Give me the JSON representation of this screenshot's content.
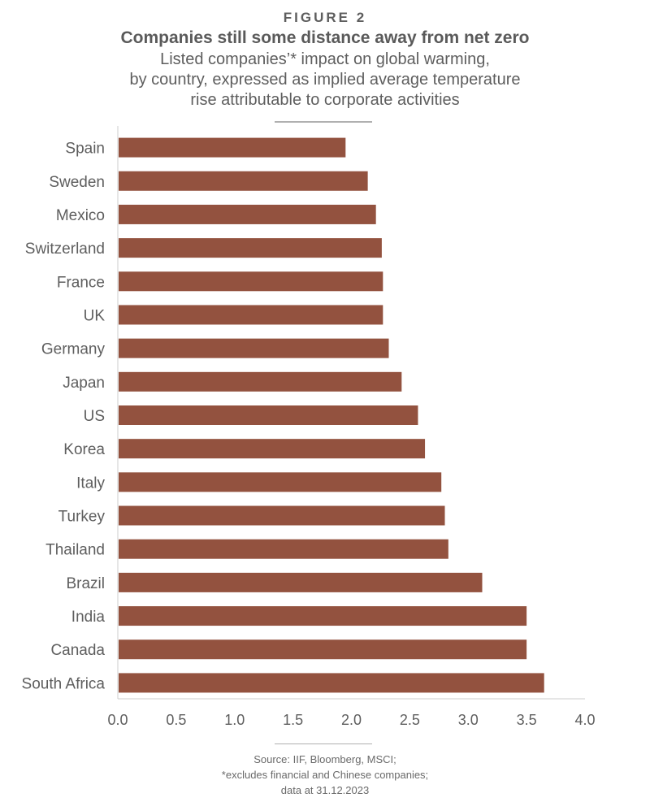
{
  "figure_label": "FIGURE 2",
  "title": "Companies still some distance away from net zero",
  "subtitle_lines": [
    "Listed companies’* impact on global warming,",
    "by country, expressed as implied average temperature",
    "rise attributable to corporate activities"
  ],
  "footer_lines": [
    "Source: IIF, Bloomberg, MSCI;",
    "*excludes financial and Chinese companies;",
    "data at 31.12.2023"
  ],
  "colors": {
    "bar": "#93523f",
    "axis": "#cccccc",
    "text": "#5a5a5a"
  },
  "chart_data": {
    "type": "bar",
    "orientation": "horizontal",
    "title": "Companies still some distance away from net zero",
    "xlabel": "",
    "ylabel": "",
    "xlim": [
      0,
      4.0
    ],
    "xticks": [
      "0.0",
      "0.5",
      "1.0",
      "1.5",
      "2.0",
      "2.5",
      "3.0",
      "3.5",
      "4.0"
    ],
    "grid": false,
    "categories": [
      "Spain",
      "Sweden",
      "Mexico",
      "Switzerland",
      "France",
      "UK",
      "Germany",
      "Japan",
      "US",
      "Korea",
      "Italy",
      "Turkey",
      "Thailand",
      "Brazil",
      "India",
      "Canada",
      "South Africa"
    ],
    "values": [
      1.95,
      2.14,
      2.21,
      2.26,
      2.27,
      2.27,
      2.32,
      2.43,
      2.57,
      2.63,
      2.77,
      2.8,
      2.83,
      3.12,
      3.5,
      3.5,
      3.65
    ]
  }
}
